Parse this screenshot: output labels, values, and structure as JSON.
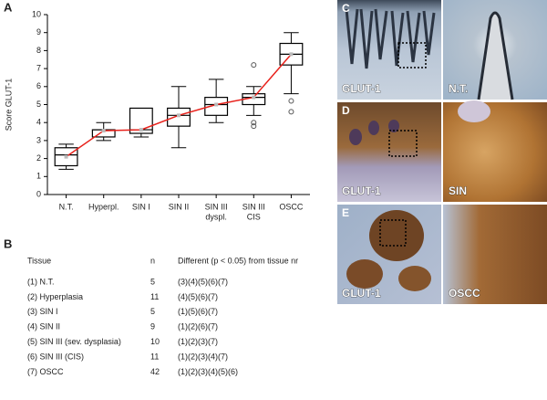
{
  "panel_labels": [
    "A",
    "B"
  ],
  "chart_data": {
    "type": "box",
    "y_label": "Score GLUT-1",
    "categories": [
      [
        "N.T."
      ],
      [
        "Hyperpl."
      ],
      [
        "SIN I"
      ],
      [
        "SIN II"
      ],
      [
        "SIN III",
        "dyspl."
      ],
      [
        "SIN III",
        "CIS"
      ],
      [
        "OSCC"
      ]
    ],
    "boxes": [
      {
        "min": 1.4,
        "q1": 1.6,
        "median": 2.2,
        "q3": 2.6,
        "max": 2.8,
        "outliers": []
      },
      {
        "min": 3.0,
        "q1": 3.2,
        "median": 3.6,
        "q3": 3.6,
        "max": 4.0,
        "outliers": []
      },
      {
        "min": 3.2,
        "q1": 3.4,
        "median": 3.6,
        "q3": 4.8,
        "max": 4.8,
        "outliers": []
      },
      {
        "min": 2.6,
        "q1": 3.8,
        "median": 4.4,
        "q3": 4.8,
        "max": 6.0,
        "outliers": []
      },
      {
        "min": 4.0,
        "q1": 4.4,
        "median": 5.0,
        "q3": 5.4,
        "max": 6.4,
        "outliers": []
      },
      {
        "min": 4.4,
        "q1": 5.0,
        "median": 5.4,
        "q3": 5.6,
        "max": 6.0,
        "outliers": [
          7.2,
          4.0,
          3.8
        ]
      },
      {
        "min": 5.6,
        "q1": 7.2,
        "median": 7.8,
        "q3": 8.4,
        "max": 9.0,
        "outliers": [
          5.2,
          4.6
        ]
      }
    ],
    "mean_line": {
      "color": "#e8201a",
      "values": [
        2.1,
        3.55,
        3.6,
        4.4,
        5.0,
        5.4,
        7.8
      ]
    },
    "box_color": "#000000",
    "ylim": [
      0,
      10
    ],
    "yticks": [
      0,
      1,
      2,
      3,
      4,
      5,
      6,
      7,
      8,
      9,
      10
    ]
  },
  "table": {
    "header": [
      "Tissue",
      "n",
      "Different (p < 0.05) from tissue nr"
    ],
    "rows": [
      [
        "(1) N.T.",
        "5",
        "(3)(4)(5)(6)(7)"
      ],
      [
        "(2) Hyperplasia",
        "11",
        "(4)(5)(6)(7)"
      ],
      [
        "(3) SIN I",
        "5",
        "(1)(5)(6)(7)"
      ],
      [
        "(4) SIN II",
        "9",
        "(1)(2)(6)(7)"
      ],
      [
        "(5) SIN III (sev. dysplasia)",
        "10",
        "(1)(2)(3)(7)"
      ],
      [
        "(6) SIN III (CIS)",
        "11",
        "(1)(2)(3)(4)(7)"
      ],
      [
        "(7) OSCC",
        "42",
        "(1)(2)(3)(4)(5)(6)"
      ]
    ]
  },
  "micrographs": [
    {
      "letter": "C",
      "left_label": "GLUT-1",
      "right_label": "N.T."
    },
    {
      "letter": "D",
      "left_label": "GLUT-1",
      "right_label": "SIN"
    },
    {
      "letter": "E",
      "left_label": "GLUT-1",
      "right_label": "OSCC"
    }
  ]
}
